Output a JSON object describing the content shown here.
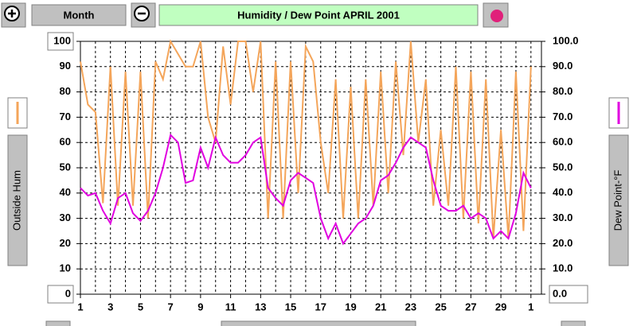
{
  "period": "Month",
  "chart_data": {
    "type": "line",
    "title": "Humidity  /  Dew Point  APRIL 2001",
    "x": [
      1,
      1.5,
      2,
      2.5,
      3,
      3.5,
      4,
      4.5,
      5,
      5.5,
      6,
      6.5,
      7,
      7.5,
      8,
      8.5,
      9,
      9.5,
      10,
      10.5,
      11,
      11.5,
      12,
      12.5,
      13,
      13.5,
      14,
      14.5,
      15,
      15.5,
      16,
      16.5,
      17,
      17.5,
      18,
      18.5,
      19,
      19.5,
      20,
      20.5,
      21,
      21.5,
      22,
      22.5,
      23,
      23.5,
      24,
      24.5,
      25,
      25.5,
      26,
      26.5,
      27,
      27.5,
      28,
      28.5,
      29,
      29.5,
      30,
      30.5,
      31
    ],
    "xlim": [
      1,
      31.7
    ],
    "xticks": [
      1,
      3,
      5,
      7,
      9,
      11,
      13,
      15,
      17,
      19,
      21,
      23,
      25,
      27,
      29,
      {
        "value": 31,
        "label": "1"
      }
    ],
    "x_minor_step": 1,
    "ylim": [
      0,
      100
    ],
    "yticks": [
      0,
      10,
      20,
      30,
      40,
      50,
      60,
      70,
      80,
      90,
      100
    ],
    "y2lim": [
      0,
      100
    ],
    "y2ticks": [
      {
        "value": 0,
        "label": "0.0"
      },
      {
        "value": 10,
        "label": "10.0"
      },
      {
        "value": 20,
        "label": "20.0"
      },
      {
        "value": 30,
        "label": "30.0"
      },
      {
        "value": 40,
        "label": "40.0"
      },
      {
        "value": 50,
        "label": "50.0"
      },
      {
        "value": 60,
        "label": "60.0"
      },
      {
        "value": 70,
        "label": "70.0"
      },
      {
        "value": 80,
        "label": "80.0"
      },
      {
        "value": 90,
        "label": "90.0"
      },
      {
        "value": 100,
        "label": "100.0"
      }
    ],
    "grid": true,
    "series": [
      {
        "name": "Outside Hum",
        "color": "#f4a55a",
        "values": [
          92,
          75,
          72,
          36,
          90,
          35,
          88,
          35,
          88,
          30,
          92,
          85,
          100,
          95,
          90,
          90,
          100,
          70,
          60,
          98,
          75,
          100,
          100,
          80,
          100,
          30,
          92,
          30,
          92,
          40,
          98,
          92,
          60,
          40,
          85,
          30,
          82,
          30,
          85,
          35,
          88,
          40,
          92,
          55,
          100,
          60,
          85,
          35,
          65,
          35,
          90,
          30,
          88,
          28,
          85,
          22,
          65,
          22,
          88,
          25,
          90
        ]
      },
      {
        "name": "Dew Point-°F",
        "color": "#e000e0",
        "axis": "y2",
        "values": [
          42,
          39,
          40,
          33,
          28,
          38,
          40,
          32,
          29,
          33,
          40,
          50,
          63,
          60,
          44,
          45,
          58,
          50,
          62,
          55,
          52,
          52,
          55,
          60,
          62,
          42,
          38,
          35,
          45,
          48,
          46,
          44,
          30,
          22,
          28,
          20,
          24,
          28,
          30,
          35,
          45,
          47,
          52,
          58,
          62,
          60,
          58,
          45,
          35,
          33,
          33,
          35,
          30,
          32,
          30,
          22,
          25,
          22,
          32,
          48,
          42
        ]
      }
    ]
  }
}
